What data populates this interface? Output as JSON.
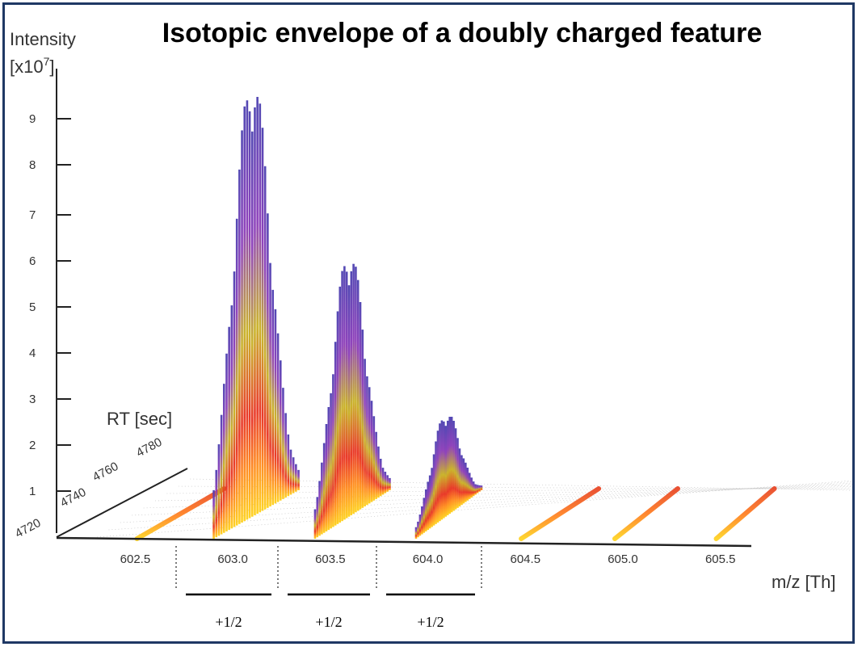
{
  "chart_data": {
    "type": "area",
    "title": "Isotopic envelope of a doubly charged feature",
    "zlabel": "Intensity",
    "zlabel_unit": "[x10",
    "zlabel_exp": "7",
    "zlabel_close": "]",
    "ylabel": "RT [sec]",
    "xlabel": "m/z [Th]",
    "z_ticks": [
      "1",
      "2",
      "3",
      "4",
      "5",
      "6",
      "7",
      "8",
      "9"
    ],
    "rt_ticks": [
      "4720",
      "4740",
      "4760",
      "4780"
    ],
    "x_ticks": [
      "602.5",
      "603.0",
      "603.5",
      "604.0",
      "604.5",
      "605.0",
      "605.5"
    ],
    "zlim": [
      0,
      10
    ],
    "xlim": [
      602.2,
      605.7
    ],
    "peaks": [
      {
        "mz": 602.55,
        "max_intensity": 0.4
      },
      {
        "mz": 603.06,
        "max_intensity": 9.8
      },
      {
        "mz": 603.56,
        "max_intensity": 5.9
      },
      {
        "mz": 604.06,
        "max_intensity": 2.3
      },
      {
        "mz": 604.52,
        "max_intensity": 0.3
      },
      {
        "mz": 605.0,
        "max_intensity": 0.15
      },
      {
        "mz": 605.52,
        "max_intensity": 0.1
      }
    ],
    "spacing_labels": [
      "+1/2",
      "+1/2",
      "+1/2"
    ]
  }
}
